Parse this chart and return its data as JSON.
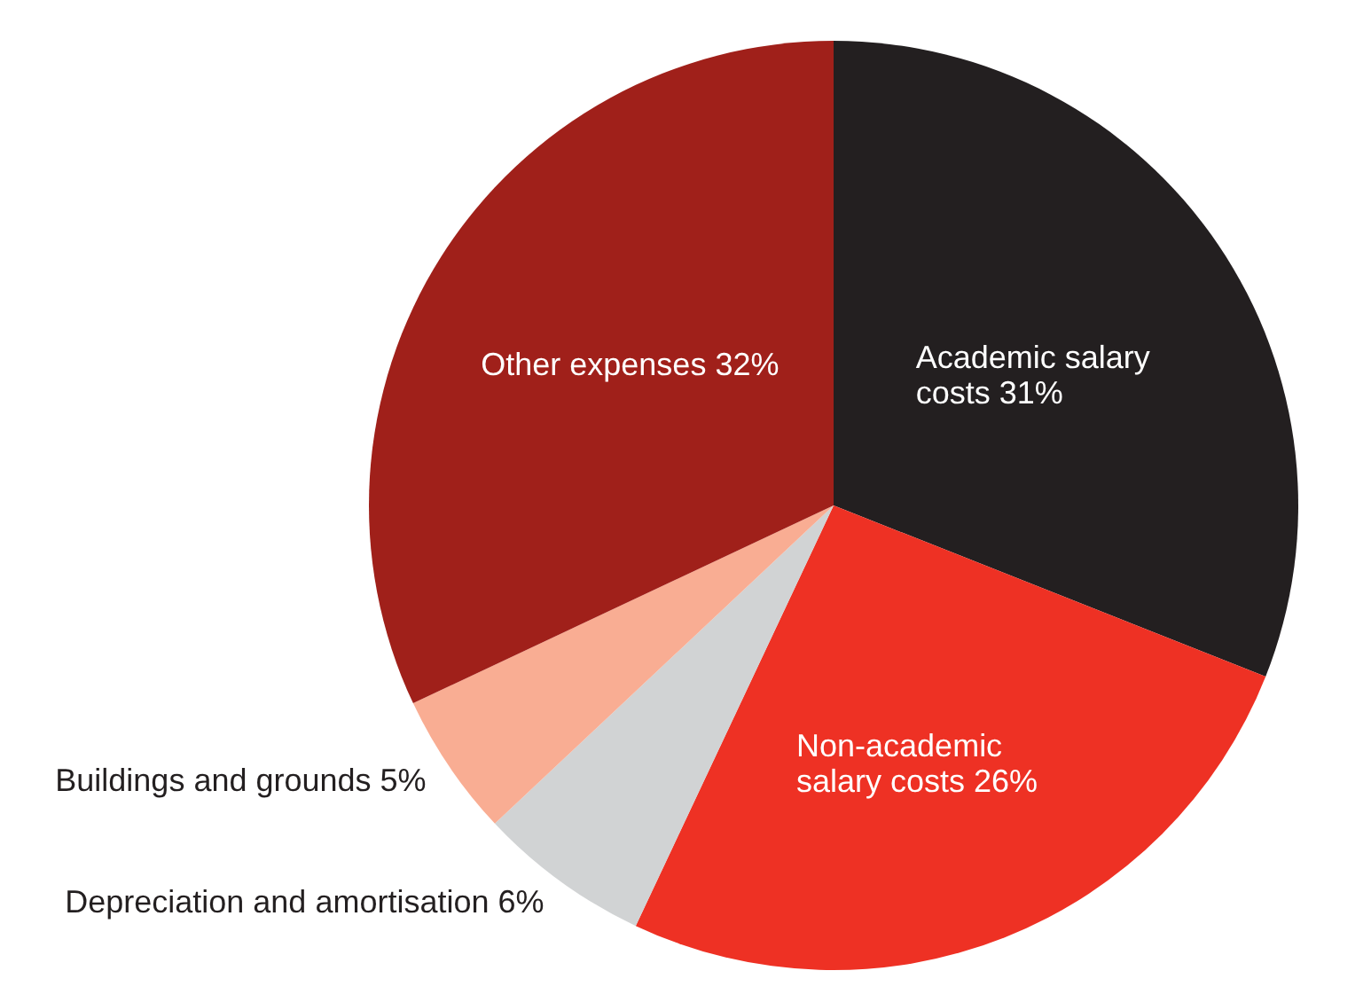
{
  "chart_data": {
    "type": "pie",
    "categories": [
      "Academic salary costs",
      "Non-academic salary costs",
      "Depreciation and amortisation",
      "Buildings and grounds",
      "Other expenses"
    ],
    "values": [
      31,
      26,
      6,
      5,
      32
    ],
    "value_labels": [
      "31%",
      "26%",
      "6%",
      "5%",
      "32%"
    ],
    "colors": [
      "#231f20",
      "#ee3124",
      "#d1d3d4",
      "#f9ad93",
      "#a0201a"
    ]
  }
}
